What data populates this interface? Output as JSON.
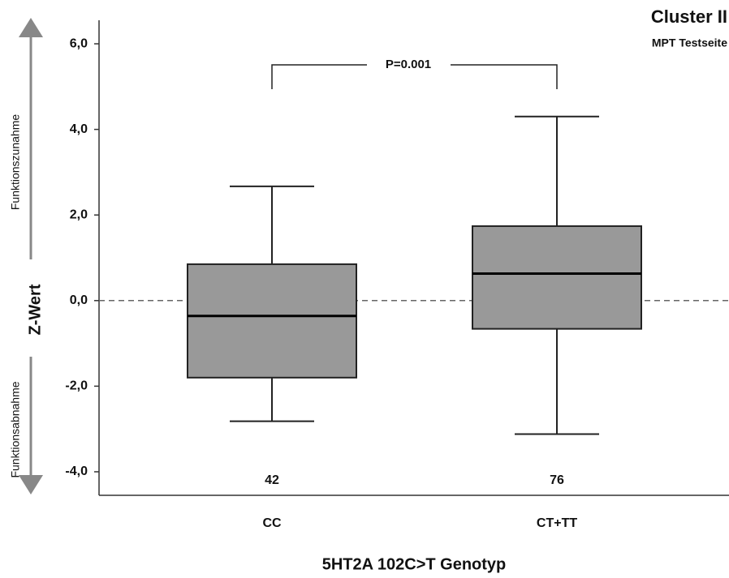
{
  "chart_data": {
    "type": "box",
    "title": "Cluster II",
    "subtitle": "MPT Testseite",
    "x_label": "5HT2A 102C>T Genotyp",
    "y_label": "Z-Wert",
    "upper_arrow_label": "Funktionszunahme",
    "lower_arrow_label": "Funktionsabnahme",
    "categories": [
      "CC",
      "CT+TT"
    ],
    "boxes": [
      {
        "whisker_low": -2.82,
        "q1": -1.8,
        "median": -0.36,
        "q3": 0.85,
        "whisker_high": 2.67
      },
      {
        "whisker_low": -3.12,
        "q1": -0.66,
        "median": 0.63,
        "q3": 1.74,
        "whisker_high": 4.3
      }
    ],
    "n": [
      42,
      76
    ],
    "annotation": "P=0.001",
    "reference_line": 0,
    "color": "#999999",
    "ylim": [
      -4.55,
      6.55
    ],
    "yticks": [
      {
        "value": -4,
        "label": "-4,0"
      },
      {
        "value": -2,
        "label": "-2,0"
      },
      {
        "value": 0,
        "label": "0,0"
      },
      {
        "value": 2,
        "label": "2,0"
      },
      {
        "value": 4,
        "label": "4,0"
      },
      {
        "value": 6,
        "label": "6,0"
      }
    ]
  }
}
